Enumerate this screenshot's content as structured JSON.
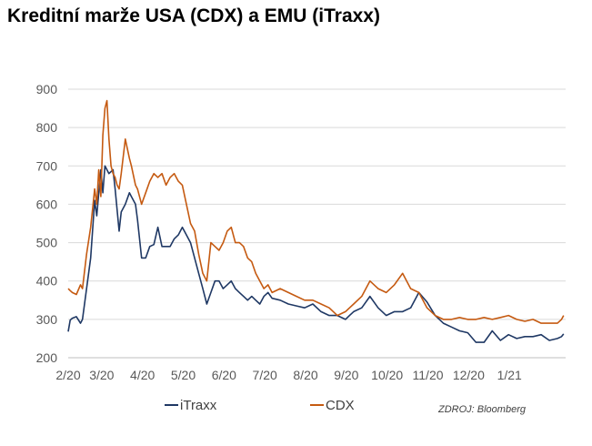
{
  "chart_data": {
    "type": "line",
    "title": "Kreditní marže USA (CDX) a EMU (iTraxx)",
    "xlabel": "",
    "ylabel": "",
    "source": "ZDROJ: Bloomberg",
    "ylim": [
      200,
      900
    ],
    "yticks": [
      200,
      300,
      400,
      500,
      600,
      700,
      800,
      900
    ],
    "xlim": [
      0,
      12.2
    ],
    "x_tick_labels": [
      "2/20",
      "3/20",
      "4/20",
      "5/20",
      "6/20",
      "7/20",
      "8/20",
      "9/20",
      "10/20",
      "11/20",
      "12/20",
      "1/21"
    ],
    "grid": true,
    "legend_position": "bottom",
    "series": [
      {
        "name": "iTraxx",
        "color": "#1f3864",
        "x": [
          0.0,
          0.05,
          0.1,
          0.2,
          0.3,
          0.35,
          0.45,
          0.55,
          0.65,
          0.7,
          0.8,
          0.85,
          0.9,
          1.0,
          1.1,
          1.15,
          1.25,
          1.3,
          1.4,
          1.5,
          1.55,
          1.65,
          1.7,
          1.8,
          1.9,
          2.0,
          2.1,
          2.2,
          2.3,
          2.4,
          2.5,
          2.6,
          2.7,
          2.8,
          2.9,
          3.0,
          3.1,
          3.2,
          3.3,
          3.4,
          3.5,
          3.6,
          3.7,
          3.8,
          3.9,
          4.0,
          4.1,
          4.2,
          4.3,
          4.4,
          4.5,
          4.6,
          4.7,
          4.8,
          4.9,
          5.0,
          5.2,
          5.4,
          5.6,
          5.8,
          6.0,
          6.2,
          6.4,
          6.6,
          6.8,
          6.9,
          7.0,
          7.2,
          7.4,
          7.6,
          7.8,
          8.0,
          8.2,
          8.4,
          8.6,
          8.8,
          9.0,
          9.2,
          9.4,
          9.6,
          9.8,
          10.0,
          10.2,
          10.4,
          10.6,
          10.8,
          11.0,
          11.2,
          11.4,
          11.6,
          11.8,
          12.0,
          12.1,
          12.15
        ],
        "y": [
          268,
          298,
          303,
          307,
          290,
          300,
          380,
          460,
          610,
          570,
          690,
          630,
          700,
          680,
          690,
          640,
          530,
          580,
          600,
          630,
          620,
          600,
          560,
          460,
          460,
          490,
          495,
          540,
          490,
          490,
          490,
          510,
          520,
          540,
          520,
          500,
          460,
          420,
          380,
          340,
          370,
          400,
          400,
          380,
          390,
          400,
          380,
          370,
          360,
          350,
          360,
          350,
          340,
          360,
          370,
          355,
          350,
          340,
          335,
          330,
          340,
          320,
          310,
          310,
          300,
          310,
          320,
          330,
          360,
          330,
          310,
          320,
          320,
          330,
          370,
          345,
          310,
          290,
          280,
          270,
          265,
          240,
          240,
          270,
          245,
          260,
          250,
          255,
          255,
          260,
          245,
          250,
          255,
          262
        ]
      },
      {
        "name": "CDX",
        "color": "#c55a11",
        "x": [
          0.0,
          0.05,
          0.1,
          0.2,
          0.3,
          0.35,
          0.45,
          0.55,
          0.65,
          0.7,
          0.75,
          0.8,
          0.85,
          0.9,
          0.95,
          1.0,
          1.05,
          1.1,
          1.15,
          1.2,
          1.25,
          1.3,
          1.4,
          1.5,
          1.55,
          1.65,
          1.7,
          1.8,
          1.9,
          2.0,
          2.1,
          2.2,
          2.3,
          2.4,
          2.5,
          2.6,
          2.7,
          2.8,
          2.9,
          3.0,
          3.1,
          3.2,
          3.3,
          3.4,
          3.5,
          3.6,
          3.7,
          3.8,
          3.9,
          4.0,
          4.1,
          4.2,
          4.3,
          4.4,
          4.5,
          4.6,
          4.7,
          4.8,
          4.9,
          5.0,
          5.2,
          5.4,
          5.6,
          5.8,
          6.0,
          6.2,
          6.4,
          6.6,
          6.8,
          6.9,
          7.0,
          7.2,
          7.4,
          7.6,
          7.8,
          8.0,
          8.2,
          8.4,
          8.6,
          8.8,
          9.0,
          9.2,
          9.4,
          9.6,
          9.8,
          10.0,
          10.2,
          10.4,
          10.6,
          10.8,
          11.0,
          11.2,
          11.4,
          11.6,
          11.8,
          12.0,
          12.1,
          12.15
        ],
        "y": [
          380,
          375,
          370,
          365,
          390,
          380,
          470,
          540,
          640,
          600,
          690,
          620,
          780,
          850,
          870,
          770,
          700,
          680,
          670,
          650,
          640,
          680,
          770,
          720,
          700,
          650,
          640,
          600,
          630,
          660,
          680,
          670,
          680,
          650,
          670,
          680,
          660,
          650,
          600,
          550,
          530,
          470,
          420,
          400,
          500,
          490,
          480,
          500,
          530,
          540,
          500,
          500,
          490,
          460,
          450,
          420,
          400,
          380,
          390,
          370,
          380,
          370,
          360,
          350,
          350,
          340,
          330,
          310,
          320,
          330,
          340,
          360,
          400,
          380,
          370,
          390,
          420,
          380,
          370,
          330,
          310,
          300,
          300,
          305,
          300,
          300,
          305,
          300,
          305,
          310,
          300,
          295,
          300,
          290,
          290,
          290,
          300,
          310
        ]
      }
    ]
  }
}
